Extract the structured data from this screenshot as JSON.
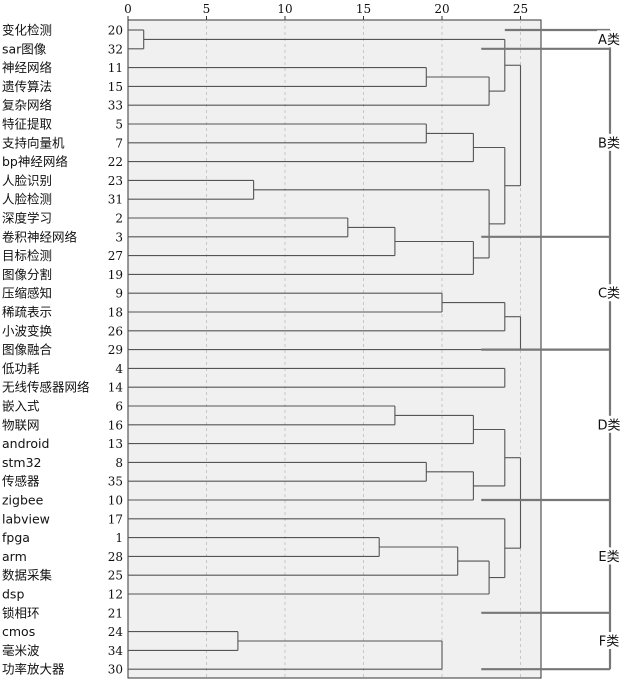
{
  "chart_data": {
    "type": "dendrogram",
    "title": "",
    "xlabel": "",
    "ylabel": "",
    "x_ticks": [
      0,
      5,
      10,
      15,
      20,
      25
    ],
    "xlim": [
      0,
      26.3
    ],
    "grid": "dashed vertical",
    "leaves": [
      {
        "label": "变化检测",
        "id": "20"
      },
      {
        "label": "sar图像",
        "id": "32"
      },
      {
        "label": "神经网络",
        "id": "11"
      },
      {
        "label": "遗传算法",
        "id": "15"
      },
      {
        "label": "复杂网络",
        "id": "33"
      },
      {
        "label": "特征提取",
        "id": "5"
      },
      {
        "label": "支持向量机",
        "id": "7"
      },
      {
        "label": "bp神经网络",
        "id": "22"
      },
      {
        "label": "人脸识别",
        "id": "23"
      },
      {
        "label": "人脸检测",
        "id": "31"
      },
      {
        "label": "深度学习",
        "id": "2"
      },
      {
        "label": "卷积神经网络",
        "id": "3"
      },
      {
        "label": "目标检测",
        "id": "27"
      },
      {
        "label": "图像分割",
        "id": "19"
      },
      {
        "label": "压缩感知",
        "id": "9"
      },
      {
        "label": "稀疏表示",
        "id": "18"
      },
      {
        "label": "小波变换",
        "id": "26"
      },
      {
        "label": "图像融合",
        "id": "29"
      },
      {
        "label": "低功耗",
        "id": "4"
      },
      {
        "label": "无线传感器网络",
        "id": "14"
      },
      {
        "label": "嵌入式",
        "id": "6"
      },
      {
        "label": "物联网",
        "id": "16"
      },
      {
        "label": "android",
        "id": "13"
      },
      {
        "label": "stm32",
        "id": "8"
      },
      {
        "label": "传感器",
        "id": "35"
      },
      {
        "label": "zigbee",
        "id": "10"
      },
      {
        "label": "labview",
        "id": "17"
      },
      {
        "label": "fpga",
        "id": "1"
      },
      {
        "label": "arm",
        "id": "28"
      },
      {
        "label": "数据采集",
        "id": "25"
      },
      {
        "label": "dsp",
        "id": "12"
      },
      {
        "label": "锁相环",
        "id": "21"
      },
      {
        "label": "cmos",
        "id": "24"
      },
      {
        "label": "毫米波",
        "id": "34"
      },
      {
        "label": "功率放大器",
        "id": "30"
      }
    ],
    "merges": [
      {
        "a": "20",
        "b": "32",
        "dist": 1,
        "name": "m_sar"
      },
      {
        "a": "11",
        "b": "15",
        "dist": 19,
        "name": "m_nn"
      },
      {
        "a": "m_nn",
        "b": "33",
        "dist": 23,
        "name": "m_nn2"
      },
      {
        "a": "m_sar",
        "b": "m_nn2",
        "dist": 24,
        "name": "m_top"
      },
      {
        "a": "5",
        "b": "7",
        "dist": 19,
        "name": "m_fe"
      },
      {
        "a": "m_fe",
        "b": "22",
        "dist": 22,
        "name": "m_fe2"
      },
      {
        "a": "23",
        "b": "31",
        "dist": 8,
        "name": "m_face"
      },
      {
        "a": "2",
        "b": "3",
        "dist": 14,
        "name": "m_dl"
      },
      {
        "a": "m_dl",
        "b": "27",
        "dist": 17,
        "name": "m_dl2"
      },
      {
        "a": "m_dl2",
        "b": "19",
        "dist": 22,
        "name": "m_dl3"
      },
      {
        "a": "m_face",
        "b": "m_dl3",
        "dist": 23,
        "name": "m_fd"
      },
      {
        "a": "m_fe2",
        "b": "m_fd",
        "dist": 24,
        "name": "m_B"
      },
      {
        "a": "m_top",
        "b": "m_B",
        "dist": 25,
        "name": "m_AB"
      },
      {
        "a": "9",
        "b": "18",
        "dist": 20,
        "name": "m_cs"
      },
      {
        "a": "m_cs",
        "b": "26",
        "dist": 24,
        "name": "m_cs2"
      },
      {
        "a": "m_cs2",
        "b": "29",
        "dist": 25,
        "name": "m_C"
      },
      {
        "a": "4",
        "b": "14",
        "dist": 24,
        "name": "m_lp"
      },
      {
        "a": "6",
        "b": "16",
        "dist": 17,
        "name": "m_emb"
      },
      {
        "a": "m_emb",
        "b": "13",
        "dist": 22,
        "name": "m_emb2"
      },
      {
        "a": "8",
        "b": "35",
        "dist": 19,
        "name": "m_stm"
      },
      {
        "a": "m_stm",
        "b": "10",
        "dist": 22,
        "name": "m_stm2"
      },
      {
        "a": "m_emb2",
        "b": "m_stm2",
        "dist": 24,
        "name": "m_D"
      },
      {
        "a": "1",
        "b": "28",
        "dist": 16,
        "name": "m_fp"
      },
      {
        "a": "m_fp",
        "b": "25",
        "dist": 21,
        "name": "m_fp2"
      },
      {
        "a": "m_fp2",
        "b": "12",
        "dist": 23,
        "name": "m_fp3"
      },
      {
        "a": "17",
        "b": "m_fp3",
        "dist": 24,
        "name": "m_E"
      },
      {
        "a": "m_D",
        "b": "m_E",
        "dist": 25,
        "name": "m_DE"
      },
      {
        "a": "24",
        "b": "34",
        "dist": 7,
        "name": "m_cm"
      },
      {
        "a": "m_cm",
        "b": "30",
        "dist": 20,
        "name": "m_F"
      }
    ],
    "groups": [
      {
        "label": "A类",
        "from": "20",
        "to": "32"
      },
      {
        "label": "B类",
        "from": "32",
        "to": "3"
      },
      {
        "label": "C类",
        "from": "3",
        "to": "29"
      },
      {
        "label": "D类",
        "from": "29",
        "to": "10"
      },
      {
        "label": "E类",
        "from": "10",
        "to": "21"
      },
      {
        "label": "F类",
        "from": "21",
        "to": "30"
      }
    ]
  }
}
